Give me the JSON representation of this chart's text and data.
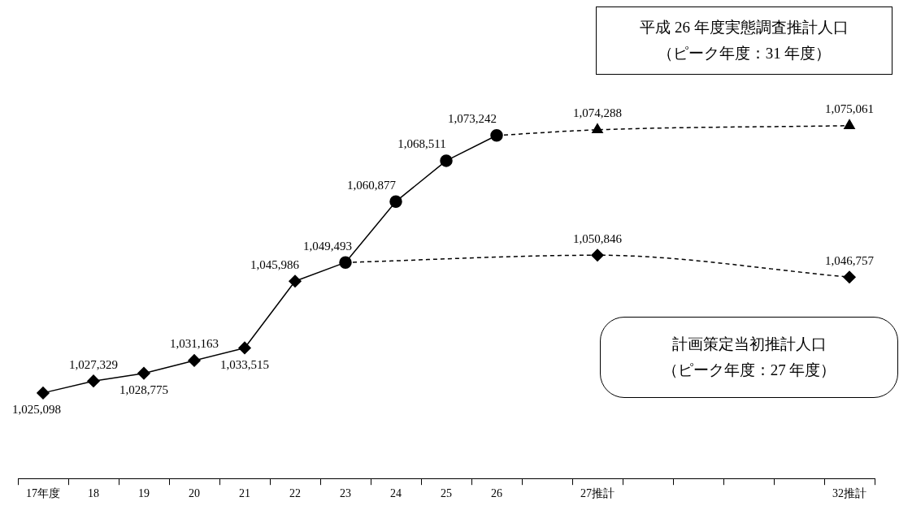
{
  "chart_data": {
    "type": "line",
    "categories": [
      "17年度",
      "18",
      "19",
      "20",
      "21",
      "22",
      "23",
      "24",
      "25",
      "26",
      null,
      "27推計",
      null,
      null,
      null,
      null,
      "32推計"
    ],
    "annotations": [
      "平成 26 年度実態調査推計人口",
      "（ピーク年度：31 年度）",
      "計画策定当初推計人口",
      "（ピーク年度：27 年度）"
    ],
    "tick_labels": "x",
    "grid": false,
    "legend": false,
    "data_labels": true,
    "series": [
      {
        "color": "#000000",
        "marker": "diamond",
        "line_style": "solid",
        "values": [
          1025098,
          1027329,
          1028775,
          1031163,
          1033515,
          1045986,
          1049493,
          null,
          null,
          null,
          null,
          null,
          null,
          null,
          null,
          null,
          null
        ],
        "value_labels": [
          "1,025,098",
          "1,027,329",
          "1,028,775",
          "1,031,163",
          "1,033,515",
          "1,045,986",
          null,
          null,
          null,
          null,
          null,
          null,
          null,
          null,
          null,
          null,
          null
        ]
      },
      {
        "color": "#000000",
        "marker": "circle",
        "line_style": "solid",
        "values": [
          null,
          null,
          null,
          null,
          null,
          null,
          1049493,
          1060877,
          1068511,
          1073242,
          null,
          null,
          null,
          null,
          null,
          null,
          null
        ],
        "value_labels": [
          null,
          null,
          null,
          null,
          null,
          null,
          "1,049,493",
          "1,060,877",
          "1,068,511",
          "1,073,242",
          null,
          null,
          null,
          null,
          null,
          null,
          null
        ]
      },
      {
        "color": "#000000",
        "marker": "triangle",
        "line_style": "dashed",
        "values": [
          null,
          null,
          null,
          null,
          null,
          null,
          null,
          null,
          null,
          1073242,
          null,
          1074288,
          null,
          null,
          null,
          null,
          1075061
        ],
        "value_labels": [
          null,
          null,
          null,
          null,
          null,
          null,
          null,
          null,
          null,
          null,
          null,
          "1,074,288",
          null,
          null,
          null,
          null,
          "1,075,061"
        ]
      },
      {
        "color": "#000000",
        "marker": "diamond",
        "line_style": "dashed",
        "values": [
          null,
          null,
          null,
          null,
          null,
          null,
          1049493,
          null,
          null,
          null,
          null,
          1050846,
          null,
          null,
          null,
          null,
          1046757
        ],
        "value_labels": [
          null,
          null,
          null,
          null,
          null,
          null,
          null,
          null,
          null,
          null,
          null,
          "1,050,846",
          null,
          null,
          null,
          null,
          "1,046,757"
        ]
      }
    ]
  }
}
